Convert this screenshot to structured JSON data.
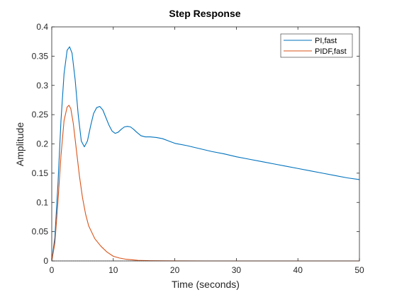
{
  "chart_data": {
    "type": "line",
    "title": "Step Response",
    "xlabel": "Time (seconds)",
    "ylabel": "Amplitude",
    "xlim": [
      0,
      50
    ],
    "ylim": [
      0,
      0.4
    ],
    "xticks": [
      0,
      10,
      20,
      30,
      40,
      50
    ],
    "yticks": [
      0,
      0.05,
      0.1,
      0.15,
      0.2,
      0.25,
      0.3,
      0.35,
      0.4
    ],
    "xtick_labels": [
      "0",
      "10",
      "20",
      "30",
      "40",
      "50"
    ],
    "ytick_labels": [
      "0",
      "0.05",
      "0.1",
      "0.15",
      "0.2",
      "0.25",
      "0.3",
      "0.35",
      "0.4"
    ],
    "grid": false,
    "legend_position": "top-right",
    "series": [
      {
        "name": "PI,fast",
        "color": "#0072BD",
        "x": [
          0,
          0.5,
          1,
          1.5,
          2,
          2.5,
          2.9,
          3.3,
          3.8,
          4.3,
          4.8,
          5.3,
          5.8,
          6.3,
          6.8,
          7.3,
          7.8,
          8.3,
          8.8,
          9.3,
          9.8,
          10.3,
          10.8,
          11.3,
          11.8,
          12.3,
          12.8,
          13.3,
          13.8,
          14.5,
          15.2,
          16,
          17,
          18,
          19,
          20,
          22,
          24,
          26,
          28,
          30,
          32,
          34,
          36,
          38,
          40,
          42,
          44,
          46,
          48,
          50
        ],
        "y": [
          0,
          0.04,
          0.13,
          0.24,
          0.32,
          0.36,
          0.366,
          0.355,
          0.31,
          0.25,
          0.205,
          0.195,
          0.205,
          0.23,
          0.252,
          0.262,
          0.264,
          0.258,
          0.245,
          0.232,
          0.222,
          0.218,
          0.22,
          0.225,
          0.229,
          0.23,
          0.229,
          0.225,
          0.22,
          0.214,
          0.212,
          0.212,
          0.211,
          0.209,
          0.205,
          0.201,
          0.197,
          0.192,
          0.187,
          0.183,
          0.178,
          0.174,
          0.17,
          0.166,
          0.162,
          0.158,
          0.154,
          0.15,
          0.146,
          0.142,
          0.139
        ]
      },
      {
        "name": "PIDF,fast",
        "color": "#D95319",
        "x": [
          0,
          0.5,
          1,
          1.5,
          2,
          2.5,
          2.8,
          3.1,
          3.5,
          4,
          4.5,
          5,
          5.5,
          6,
          7,
          8,
          9,
          10,
          11,
          12,
          13,
          14,
          15,
          16,
          18,
          20,
          25,
          30,
          40,
          50
        ],
        "y": [
          0,
          0.03,
          0.1,
          0.18,
          0.24,
          0.263,
          0.266,
          0.26,
          0.235,
          0.19,
          0.145,
          0.108,
          0.08,
          0.06,
          0.038,
          0.025,
          0.015,
          0.008,
          0.005,
          0.003,
          0.002,
          0.001,
          0.0007,
          0.0004,
          0.0002,
          0.0001,
          0,
          0,
          0,
          0
        ]
      }
    ]
  }
}
